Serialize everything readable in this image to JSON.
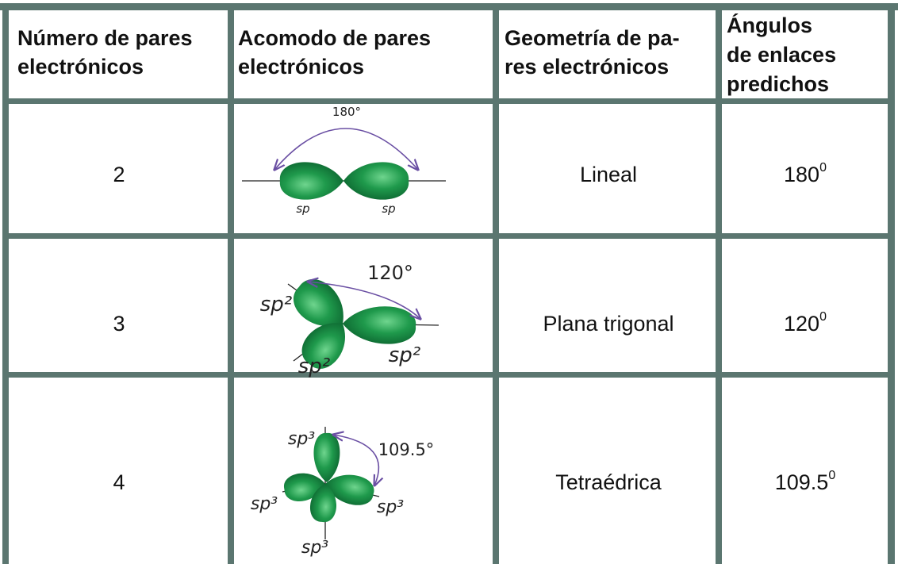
{
  "table": {
    "header": [
      [
        "Número de pares",
        "electrónicos"
      ],
      [
        "Acomodo de pares",
        "electrónicos"
      ],
      [
        "Geometría de pa-",
        "res electrónicos"
      ],
      [
        "Ángulos",
        "de enlaces",
        "predichos"
      ]
    ],
    "rows": [
      {
        "pairs": "2",
        "diagram": {
          "angle": "180°",
          "labels": [
            "sp",
            "sp"
          ]
        },
        "geometry": "Lineal",
        "angle": {
          "base": "180",
          "sup": "0"
        }
      },
      {
        "pairs": "3",
        "diagram": {
          "angle": "120°",
          "labels": [
            "sp²",
            "sp²",
            "sp²"
          ]
        },
        "geometry": "Plana trigonal",
        "angle": {
          "base": "120",
          "sup": "0"
        }
      },
      {
        "pairs": "4",
        "diagram": {
          "angle": "109.5°",
          "labels": [
            "sp³",
            "sp³",
            "sp³",
            "sp³"
          ]
        },
        "geometry": "Tetraédrica",
        "angle": {
          "base": "109.5",
          "sup": "0"
        }
      }
    ]
  }
}
